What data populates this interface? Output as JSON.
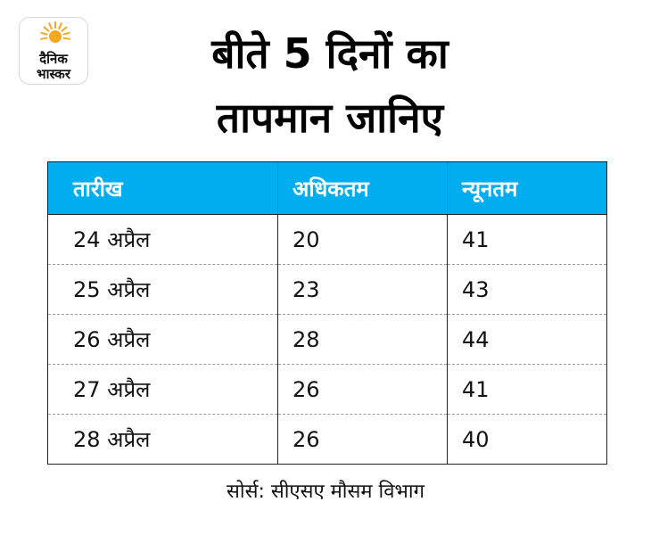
{
  "logo": {
    "line1": "दैनिक",
    "line2": "भास्कर",
    "icon": "sun-icon",
    "color": "#f7a823"
  },
  "title": {
    "line1": "बीते 5 दिनों का",
    "line2": "तापमान जानिए"
  },
  "table": {
    "header_color": "#00aeef",
    "headers": [
      "तारीख",
      "अधिकतम",
      "न्यूनतम"
    ],
    "rows": [
      [
        "24 अप्रैल",
        "20",
        "41"
      ],
      [
        "25 अप्रैल",
        "23",
        "43"
      ],
      [
        "26 अप्रैल",
        "28",
        "44"
      ],
      [
        "27 अप्रैल",
        "26",
        "41"
      ],
      [
        "28 अप्रैल",
        "26",
        "40"
      ]
    ]
  },
  "source": "सोर्स: सीएसए मौसम विभाग"
}
